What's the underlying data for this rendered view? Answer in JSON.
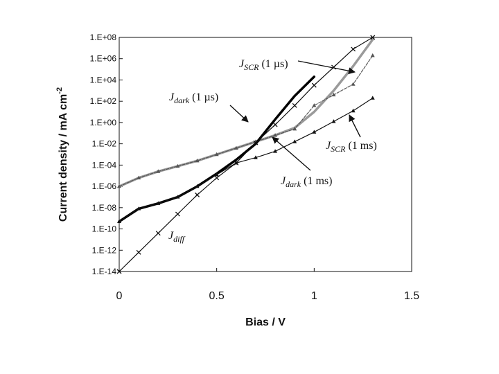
{
  "chart_data": {
    "type": "line",
    "title": "",
    "xlabel": "Bias / V",
    "ylabel_main": "Current density / mA cm",
    "ylabel_sup": "-2",
    "xlim": [
      0,
      1.5
    ],
    "ylim_log10": [
      -14,
      8
    ],
    "y_scale": "log",
    "grid": false,
    "legend": "none",
    "x_ticks": [
      {
        "value": 0,
        "label": "0"
      },
      {
        "value": 0.5,
        "label": "0.5"
      },
      {
        "value": 1,
        "label": "1"
      },
      {
        "value": 1.5,
        "label": "1.5"
      }
    ],
    "y_ticks": [
      {
        "exp": 8,
        "label": "1.E+08"
      },
      {
        "exp": 6,
        "label": "1.E+06"
      },
      {
        "exp": 4,
        "label": "1.E+04"
      },
      {
        "exp": 2,
        "label": "1.E+02"
      },
      {
        "exp": 0,
        "label": "1.E+00"
      },
      {
        "exp": -2,
        "label": "1.E-02"
      },
      {
        "exp": -4,
        "label": "1.E-04"
      },
      {
        "exp": -6,
        "label": "1.E-06"
      },
      {
        "exp": -8,
        "label": "1.E-08"
      },
      {
        "exp": -10,
        "label": "1.E-10"
      },
      {
        "exp": -12,
        "label": "1.E-12"
      },
      {
        "exp": -14,
        "label": "1.E-14"
      }
    ],
    "series": [
      {
        "key": "jdark_1us",
        "color": "#9a9a9a",
        "stroke": 3.5,
        "marker": "none",
        "x": [
          0,
          0.1,
          0.2,
          0.3,
          0.4,
          0.5,
          0.6,
          0.7,
          0.8,
          0.9,
          1.0,
          1.1,
          1.2,
          1.3
        ],
        "log10_y": [
          -6.0,
          -5.2,
          -4.6,
          -4.1,
          -3.6,
          -3.0,
          -2.4,
          -1.8,
          -1.2,
          -0.5,
          1.0,
          3.0,
          5.3,
          7.8
        ]
      },
      {
        "key": "jscr_1us",
        "color": "#555555",
        "stroke": 1.2,
        "dash": "4,2",
        "marker": "triangle",
        "x": [
          0,
          0.1,
          0.2,
          0.3,
          0.4,
          0.5,
          0.6,
          0.7,
          0.8,
          0.9,
          1.0,
          1.1,
          1.2,
          1.3
        ],
        "log10_y": [
          -6.0,
          -5.2,
          -4.6,
          -4.1,
          -3.6,
          -3.0,
          -2.4,
          -1.8,
          -1.2,
          -0.6,
          1.6,
          2.6,
          3.6,
          6.3
        ]
      },
      {
        "key": "jdark_1ms",
        "color": "#000000",
        "stroke": 3.5,
        "marker": "none",
        "x": [
          0,
          0.1,
          0.2,
          0.3,
          0.4,
          0.5,
          0.6,
          0.7,
          0.8,
          0.9,
          1.0
        ],
        "log10_y": [
          -9.3,
          -8.1,
          -7.6,
          -7.0,
          -6.0,
          -4.8,
          -3.5,
          -2.0,
          0.3,
          2.5,
          4.3
        ]
      },
      {
        "key": "jscr_1ms",
        "color": "#111111",
        "stroke": 1.2,
        "marker": "triangle",
        "x": [
          0,
          0.1,
          0.2,
          0.3,
          0.4,
          0.5,
          0.6,
          0.7,
          0.8,
          0.9,
          1.0,
          1.1,
          1.2,
          1.3
        ],
        "log10_y": [
          -9.3,
          -8.1,
          -7.6,
          -7.0,
          -6.0,
          -4.9,
          -3.8,
          -3.3,
          -2.7,
          -1.8,
          -0.9,
          0.1,
          1.1,
          2.3
        ]
      },
      {
        "key": "jdiff",
        "color": "#111111",
        "stroke": 1.2,
        "marker": "x",
        "x": [
          0,
          0.1,
          0.2,
          0.3,
          0.4,
          0.5,
          0.6,
          0.7,
          0.8,
          0.9,
          1.0,
          1.1,
          1.2,
          1.3
        ],
        "log10_y": [
          -14.0,
          -12.2,
          -10.4,
          -8.6,
          -6.8,
          -5.2,
          -3.8,
          -1.9,
          -0.2,
          1.6,
          3.5,
          5.2,
          6.9,
          8.0
        ]
      }
    ],
    "annotations": [
      {
        "key": "jscr_1us",
        "main": "J",
        "sub": "SCR",
        "rest": " (1 µs)"
      },
      {
        "key": "jdark_1us",
        "main": "J",
        "sub": "dark",
        "rest": " (1 µs)"
      },
      {
        "key": "jscr_1ms",
        "main": "J",
        "sub": "SCR",
        "rest": " (1 ms)"
      },
      {
        "key": "jdark_1ms",
        "main": "J",
        "sub": "dark",
        "rest": " (1 ms)"
      },
      {
        "key": "jdiff",
        "main": "J",
        "sub": "diff",
        "rest": ""
      }
    ]
  }
}
